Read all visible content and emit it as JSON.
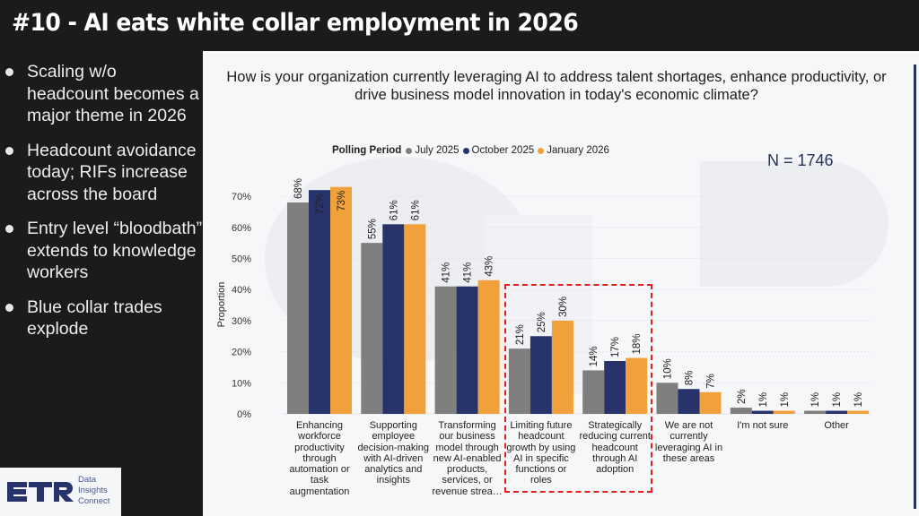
{
  "slide": {
    "title": "#10 - AI eats white collar employment in 2026",
    "bullets": [
      "Scaling w/o headcount becomes a major theme in 2026",
      "Headcount avoidance today; RIFs increase across the board",
      "Entry level “bloodbath” extends to knowledge workers",
      "Blue collar trades explode"
    ],
    "logo": {
      "mark": "ETR",
      "tagline": [
        "Data",
        "Insights",
        "Connect"
      ]
    }
  },
  "chart_data": {
    "type": "bar",
    "title": "How is your organization currently leveraging AI to address talent shortages, enhance productivity, or drive business model innovation in today's economic climate?",
    "sample_size": "N = 1746",
    "legend_title": "Polling Period",
    "legend_position": "top-center",
    "xlabel": "",
    "ylabel": "Proportion",
    "ylim": [
      0,
      0.75
    ],
    "yticks": [
      "0%",
      "10%",
      "20%",
      "30%",
      "40%",
      "50%",
      "60%",
      "70%"
    ],
    "categories": [
      "Enhancing workforce productivity through automation or task augmentation",
      "Supporting employee decision-making with AI-driven analytics and insights",
      "Transforming our business model through new AI-enabled products, services, or revenue strea…",
      "Limiting future headcount growth by using AI in specific functions or roles",
      "Strategically reducing current headcount through AI adoption",
      "We are not currently leveraging AI in these areas",
      "I'm not sure",
      "Other"
    ],
    "series": [
      {
        "name": "July 2025",
        "color": "#7f7f7f",
        "values": [
          68,
          55,
          41,
          21,
          14,
          10,
          2,
          1
        ],
        "labels": [
          "68%",
          "55%",
          "41%",
          "21%",
          "14%",
          "10%",
          "2%",
          "1%"
        ]
      },
      {
        "name": "October 2025",
        "color": "#27336a",
        "values": [
          72,
          61,
          41,
          25,
          17,
          8,
          1,
          1
        ],
        "labels": [
          "72%",
          "61%",
          "41%",
          "25%",
          "17%",
          "8%",
          "1%",
          "1%"
        ]
      },
      {
        "name": "January 2026",
        "color": "#f0a13c",
        "values": [
          73,
          61,
          43,
          30,
          18,
          7,
          1,
          1
        ],
        "labels": [
          "73%",
          "61%",
          "43%",
          "30%",
          "18%",
          "7%",
          "1%",
          "1%"
        ]
      }
    ],
    "highlighted_categories": [
      3,
      4
    ],
    "highlight_color": "#e0201f",
    "grid": true
  }
}
